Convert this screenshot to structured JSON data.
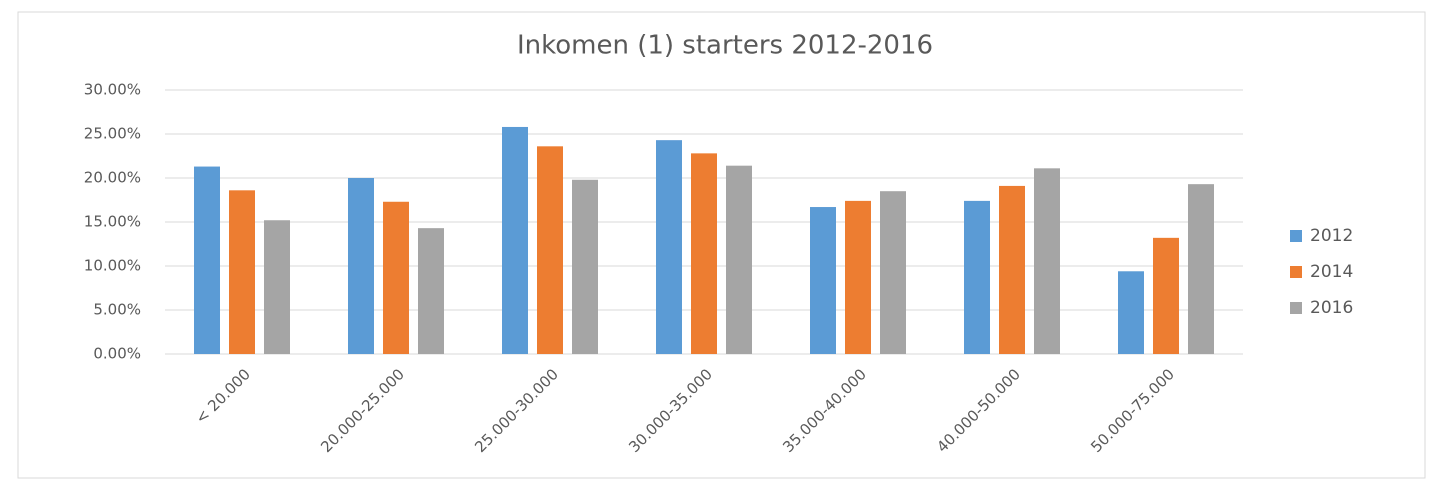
{
  "chart_data": {
    "type": "bar",
    "title": "Inkomen (1) starters 2012-2016",
    "categories": [
      "< 20.000",
      "20.000-25.000",
      "25.000-30.000",
      "30.000-35.000",
      "35.000-40.000",
      "40.000-50.000",
      "50.000-75.000"
    ],
    "series": [
      {
        "name": "2012",
        "color": "#5b9bd5",
        "values": [
          21.3,
          20.0,
          25.8,
          24.3,
          16.7,
          17.4,
          9.4
        ]
      },
      {
        "name": "2014",
        "color": "#ed7d31",
        "values": [
          18.6,
          17.3,
          23.6,
          22.8,
          17.4,
          19.1,
          13.2
        ]
      },
      {
        "name": "2016",
        "color": "#a5a5a5",
        "values": [
          15.2,
          14.3,
          19.8,
          21.4,
          18.5,
          21.1,
          19.3
        ]
      }
    ],
    "ylim": [
      0,
      30
    ],
    "yticks": [
      {
        "value": 0,
        "label": "0.00%"
      },
      {
        "value": 5,
        "label": "5.00%"
      },
      {
        "value": 10,
        "label": "10.00%"
      },
      {
        "value": 15,
        "label": "15.00%"
      },
      {
        "value": 20,
        "label": "20.00%"
      },
      {
        "value": 25,
        "label": "25.00%"
      },
      {
        "value": 30,
        "label": "30.00%"
      }
    ],
    "grid": true,
    "legend": "right"
  }
}
